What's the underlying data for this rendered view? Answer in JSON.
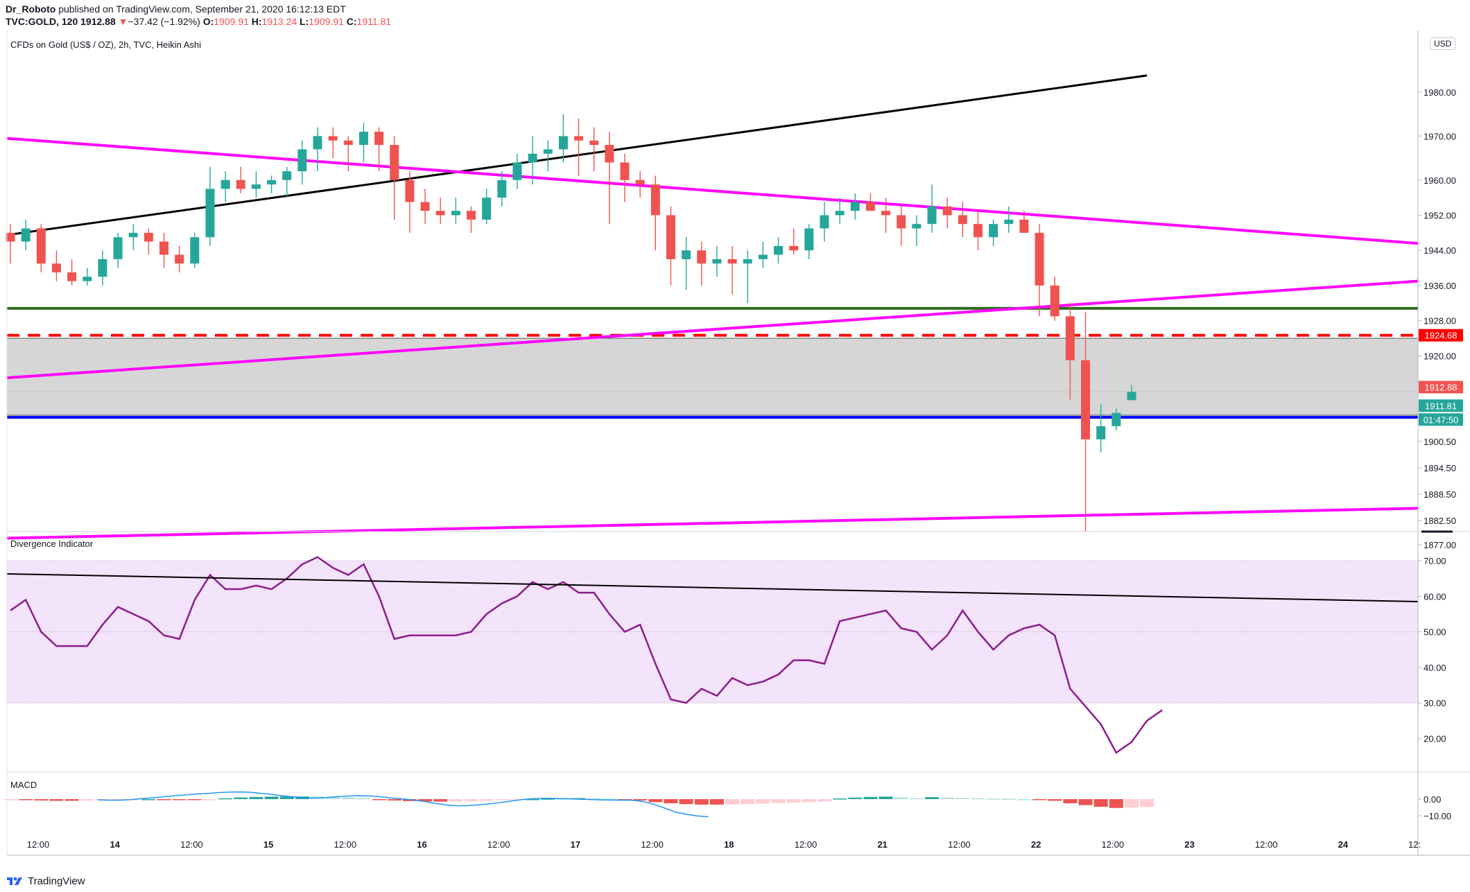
{
  "header": {
    "author": "Dr_Roboto",
    "published_text": "published on TradingView.com, September 21, 2020 16:12:13 EDT",
    "symbol": "TVC:GOLD, 120",
    "last": "1912.88",
    "change": "−37.42 (−1.92%)",
    "o_label": "O:",
    "o_value": "1909.91",
    "h_label": "H:",
    "h_value": "1913.24",
    "l_label": "L:",
    "l_value": "1909.91",
    "c_label": "C:",
    "c_value": "1911.81"
  },
  "price_pane": {
    "title": "CFDs on Gold (US$ / OZ), 2h, TVC, Heikin Ashi",
    "currency": "USD"
  },
  "indicator_pane": {
    "title": "Divergence Indicator"
  },
  "macd_pane": {
    "title": "MACD"
  },
  "footer": {
    "brand": "TradingView"
  },
  "colors": {
    "up": "#26a69a",
    "down": "#ef5350",
    "trend_black": "#000000",
    "trend_magenta": "#ff00ff",
    "support_green": "#2e6b1e",
    "level_red": "#ff0000",
    "level_blue": "#0000ff",
    "zone_gray": "#d6d6d6",
    "osc_line": "#8b1c8b",
    "osc_band": "#f3e3fb",
    "macd_line": "#2196f3"
  },
  "chart_data": [
    {
      "type": "candlestick",
      "title": "CFDs on Gold (US$ / OZ), 2h, TVC, Heikin Ashi",
      "x_tick_labels": [
        "12:00",
        "14",
        "12:00",
        "15",
        "12:00",
        "16",
        "12:00",
        "17",
        "12:00",
        "18",
        "12:00",
        "21",
        "12:00",
        "22",
        "12:00",
        "23",
        "12:00",
        "24",
        "12:"
      ],
      "y_ticks": [
        1980.0,
        1970.0,
        1960.0,
        1952.0,
        1944.0,
        1936.0,
        1928.0,
        1920.0,
        1900.5,
        1894.5,
        1888.5,
        1882.5,
        1877.0
      ],
      "ylim": [
        1872.6,
        1982.3
      ],
      "candles": [
        [
          1948,
          1950,
          1941,
          1946
        ],
        [
          1946,
          1951,
          1944,
          1949
        ],
        [
          1949,
          1950,
          1939,
          1941
        ],
        [
          1941,
          1944,
          1937,
          1939
        ],
        [
          1939,
          1942,
          1936,
          1937
        ],
        [
          1937,
          1940,
          1936,
          1938
        ],
        [
          1938,
          1944,
          1936,
          1942
        ],
        [
          1942,
          1948,
          1940,
          1947
        ],
        [
          1947,
          1950,
          1944,
          1948
        ],
        [
          1948,
          1949,
          1943,
          1946
        ],
        [
          1946,
          1948,
          1940,
          1943
        ],
        [
          1943,
          1945,
          1939,
          1941
        ],
        [
          1941,
          1948,
          1940,
          1947
        ],
        [
          1947,
          1963,
          1945,
          1958
        ],
        [
          1958,
          1962,
          1955,
          1960
        ],
        [
          1960,
          1963,
          1957,
          1958
        ],
        [
          1958,
          1962,
          1956,
          1959
        ],
        [
          1959,
          1961,
          1957,
          1960
        ],
        [
          1960,
          1963,
          1956,
          1962
        ],
        [
          1962,
          1969,
          1959,
          1967
        ],
        [
          1967,
          1972,
          1962,
          1970
        ],
        [
          1970,
          1972,
          1965,
          1969
        ],
        [
          1969,
          1970,
          1962,
          1968
        ],
        [
          1968,
          1973,
          1964,
          1971
        ],
        [
          1971,
          1972,
          1962,
          1968
        ],
        [
          1968,
          1970,
          1951,
          1960
        ],
        [
          1960,
          1962,
          1948,
          1955
        ],
        [
          1955,
          1958,
          1950,
          1953
        ],
        [
          1953,
          1956,
          1950,
          1952
        ],
        [
          1952,
          1956,
          1950,
          1953
        ],
        [
          1953,
          1954,
          1948,
          1951
        ],
        [
          1951,
          1958,
          1950,
          1956
        ],
        [
          1956,
          1962,
          1954,
          1960
        ],
        [
          1960,
          1966,
          1958,
          1964
        ],
        [
          1964,
          1970,
          1959,
          1966
        ],
        [
          1966,
          1969,
          1962,
          1967
        ],
        [
          1967,
          1975,
          1964,
          1970
        ],
        [
          1970,
          1974,
          1961,
          1969
        ],
        [
          1969,
          1972,
          1962,
          1968
        ],
        [
          1968,
          1971,
          1950,
          1964
        ],
        [
          1964,
          1966,
          1955,
          1960
        ],
        [
          1960,
          1962,
          1956,
          1959
        ],
        [
          1959,
          1961,
          1944,
          1952
        ],
        [
          1952,
          1954,
          1936,
          1942
        ],
        [
          1942,
          1947,
          1935,
          1944
        ],
        [
          1944,
          1946,
          1936,
          1941
        ],
        [
          1941,
          1945,
          1938,
          1942
        ],
        [
          1942,
          1945,
          1934,
          1941
        ],
        [
          1941,
          1944,
          1932,
          1942
        ],
        [
          1942,
          1946,
          1940,
          1943
        ],
        [
          1943,
          1947,
          1941,
          1945
        ],
        [
          1945,
          1949,
          1943,
          1944
        ],
        [
          1944,
          1950,
          1942,
          1949
        ],
        [
          1949,
          1955,
          1946,
          1952
        ],
        [
          1952,
          1956,
          1950,
          1953
        ],
        [
          1953,
          1957,
          1951,
          1955
        ],
        [
          1955,
          1957,
          1953,
          1953
        ],
        [
          1953,
          1956,
          1948,
          1952
        ],
        [
          1952,
          1954,
          1945,
          1949
        ],
        [
          1949,
          1952,
          1945,
          1950
        ],
        [
          1950,
          1959,
          1948,
          1954
        ],
        [
          1954,
          1956,
          1949,
          1952
        ],
        [
          1952,
          1955,
          1947,
          1950
        ],
        [
          1950,
          1953,
          1944,
          1947
        ],
        [
          1947,
          1951,
          1945,
          1950
        ],
        [
          1950,
          1954,
          1948,
          1951
        ],
        [
          1951,
          1953,
          1948,
          1948
        ],
        [
          1948,
          1950,
          1929,
          1936
        ],
        [
          1936,
          1938,
          1928,
          1929
        ],
        [
          1929,
          1932,
          1910,
          1919
        ],
        [
          1919,
          1930,
          1880,
          1901
        ],
        [
          1901,
          1909,
          1898,
          1904
        ],
        [
          1904,
          1908,
          1903,
          1907
        ],
        [
          1909.91,
          1913.24,
          1909.91,
          1911.81
        ]
      ],
      "levels": [
        {
          "name": "resistance",
          "value": 1924.68,
          "style": "dashed",
          "label": "1924.68"
        },
        {
          "name": "support",
          "value": 1930.8
        },
        {
          "name": "blue-level",
          "value": 1906.0
        }
      ],
      "zone": {
        "top": 1924.0,
        "bottom": 1906.5
      },
      "trendlines": [
        {
          "name": "black-uptrend",
          "from": [
            0,
            1947.5
          ],
          "to": [
            74,
            1983.8
          ]
        },
        {
          "name": "magenta-upper",
          "from": [
            0,
            1969.5
          ],
          "to": [
            114,
            1945.6
          ]
        },
        {
          "name": "magenta-mid",
          "from": [
            0,
            1915.0
          ],
          "to": [
            114,
            1937.0
          ]
        },
        {
          "name": "magenta-lower",
          "from": [
            0,
            1878.5
          ],
          "to": [
            114,
            1885.3
          ]
        }
      ],
      "price_labels": {
        "last": "1912.88",
        "close": "1911.81",
        "countdown": "01:47:50"
      }
    },
    {
      "type": "line",
      "title": "Divergence Indicator",
      "y_ticks": [
        70.0,
        60.0,
        50.0,
        40.0,
        30.0,
        20.0
      ],
      "band": [
        30,
        70
      ],
      "midline": 50,
      "values": [
        56,
        59,
        50,
        46,
        46,
        46,
        52,
        57,
        55,
        53,
        49,
        48,
        59,
        66,
        62,
        62,
        63,
        62,
        65,
        69,
        71,
        68,
        66,
        69,
        60,
        48,
        49,
        49,
        49,
        49,
        50,
        55,
        58,
        60,
        64,
        62,
        64,
        61,
        61,
        55,
        50,
        52,
        41,
        31,
        30,
        34,
        32,
        37,
        35,
        36,
        38,
        42,
        42,
        41,
        53,
        54,
        55,
        56,
        51,
        50,
        45,
        49,
        56,
        50,
        45,
        49,
        51,
        52,
        49,
        34,
        29,
        24,
        16,
        19,
        25,
        28
      ],
      "trendline": {
        "from": [
          0,
          66.3
        ],
        "to": [
          114,
          58.5
        ]
      }
    },
    {
      "type": "bar",
      "title": "MACD",
      "y_ticks": [
        0.0,
        -10.0
      ],
      "histogram": [
        -0.3,
        -0.6,
        -0.8,
        -1.0,
        -1.0,
        -0.9,
        -0.7,
        -0.5,
        -0.2,
        0.0,
        -0.1,
        -0.2,
        -0.3,
        -0.1,
        0.5,
        1.0,
        1.3,
        1.5,
        1.6,
        1.6,
        1.5,
        1.3,
        1.0,
        0.5,
        -0.2,
        -0.8,
        -1.2,
        -1.4,
        -1.5,
        -1.4,
        -1.2,
        -1.0,
        -0.7,
        -0.4,
        0.0,
        0.3,
        0.5,
        0.6,
        0.5,
        0.2,
        -0.1,
        -0.8,
        -1.8,
        -2.5,
        -3.0,
        -3.3,
        -3.3,
        -3.2,
        -3.0,
        -2.7,
        -2.4,
        -2.1,
        -1.8,
        -1.4,
        0.4,
        0.9,
        1.3,
        1.5,
        1.0,
        0.6,
        1.2,
        0.9,
        0.7,
        0.5,
        0.3,
        0.2,
        0.0,
        -0.2,
        -1.0,
        -2.5,
        -3.6,
        -4.6,
        -5.3,
        -5.1,
        -4.7
      ],
      "macd_line": [
        -0.4,
        -0.6,
        -0.6,
        -0.3,
        0.3,
        0.8,
        1.4,
        2.0,
        2.5,
        3.0,
        3.4,
        3.9,
        4.2,
        4.3,
        4.1,
        3.5,
        2.8,
        2.0,
        1.3,
        0.8,
        0.7,
        1.0,
        1.5,
        1.9,
        2.1,
        1.9,
        1.4,
        0.7,
        0.1,
        -0.5,
        -1.4,
        -2.6,
        -3.5,
        -4.0,
        -3.9,
        -3.4,
        -2.8,
        -2.0,
        -1.1,
        -0.2,
        0.3,
        0.5,
        0.4,
        0.2,
        0.0,
        -0.2,
        -0.4,
        -0.5,
        -0.6,
        -0.7,
        -1.4,
        -3.1,
        -5.4,
        -7.8,
        -9.1,
        -10.1,
        -10.6
      ],
      "macd_line_start_index": 8
    }
  ]
}
